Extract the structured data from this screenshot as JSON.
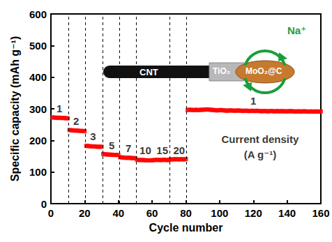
{
  "chart_data": {
    "type": "scatter",
    "xlabel": "Cycle number",
    "ylabel": "Specific capacity (mAh g⁻¹)",
    "xlim": [
      0,
      160
    ],
    "xticks": [
      0,
      20,
      40,
      60,
      80,
      100,
      120,
      140,
      160
    ],
    "ylim": [
      0,
      600
    ],
    "yticks": [
      0,
      100,
      200,
      300,
      400,
      500,
      600
    ],
    "grid": false,
    "series": [
      {
        "color": "#ff0000",
        "marker": "square",
        "x": [
          1,
          2,
          3,
          4,
          5,
          6,
          7,
          8,
          9,
          10,
          11,
          12,
          13,
          14,
          15,
          16,
          17,
          18,
          19,
          20,
          21,
          22,
          23,
          24,
          25,
          26,
          27,
          28,
          29,
          30,
          31,
          32,
          33,
          34,
          35,
          36,
          37,
          38,
          39,
          40,
          41,
          42,
          43,
          44,
          45,
          46,
          47,
          48,
          49,
          50,
          51,
          52,
          53,
          54,
          55,
          56,
          57,
          58,
          59,
          60,
          61,
          62,
          63,
          64,
          65,
          66,
          67,
          68,
          69,
          70,
          71,
          72,
          73,
          74,
          75,
          76,
          77,
          78,
          79,
          80,
          81,
          82,
          83,
          84,
          85,
          86,
          87,
          88,
          89,
          90,
          91,
          92,
          93,
          94,
          95,
          96,
          97,
          98,
          99,
          100,
          101,
          102,
          103,
          104,
          105,
          106,
          107,
          108,
          109,
          110,
          111,
          112,
          113,
          114,
          115,
          116,
          117,
          118,
          119,
          120,
          121,
          122,
          123,
          124,
          125,
          126,
          127,
          128,
          129,
          130,
          131,
          132,
          133,
          134,
          135,
          136,
          137,
          138,
          139,
          140,
          141,
          142,
          143,
          144,
          145,
          146,
          147,
          148,
          149,
          150,
          151,
          152,
          153,
          154,
          155,
          156,
          157,
          158,
          159,
          160
        ],
        "values": [
          273,
          272,
          272,
          271,
          272,
          271,
          271,
          271,
          270,
          270,
          233,
          232,
          232,
          231,
          231,
          231,
          230,
          230,
          230,
          229,
          183,
          182,
          182,
          181,
          181,
          181,
          180,
          180,
          180,
          180,
          157,
          156,
          156,
          155,
          155,
          155,
          154,
          154,
          154,
          154,
          147,
          146,
          146,
          145,
          145,
          145,
          145,
          144,
          144,
          144,
          139,
          138,
          138,
          138,
          138,
          137,
          137,
          137,
          137,
          137,
          138,
          138,
          139,
          138,
          138,
          138,
          139,
          138,
          138,
          138,
          140,
          140,
          140,
          141,
          140,
          140,
          141,
          140,
          140,
          141,
          296,
          297,
          297,
          296,
          296,
          297,
          296,
          296,
          297,
          297,
          297,
          298,
          298,
          297,
          297,
          296,
          296,
          295,
          295,
          296,
          296,
          295,
          295,
          294,
          294,
          295,
          295,
          294,
          294,
          294,
          295,
          294,
          294,
          293,
          294,
          294,
          293,
          293,
          294,
          293,
          293,
          294,
          293,
          293,
          292,
          293,
          293,
          292,
          292,
          293,
          293,
          292,
          292,
          293,
          292,
          292,
          293,
          292,
          292,
          292,
          292,
          293,
          292,
          292,
          291,
          292,
          292,
          291,
          292,
          292,
          292,
          291,
          291,
          292,
          291,
          291,
          292,
          291,
          291,
          292
        ]
      }
    ],
    "dividers": [
      10.5,
      20.5,
      30.5,
      40.5,
      50.5,
      70.5,
      80.5
    ],
    "annotations": [
      {
        "text": "1",
        "x": 5,
        "y": 302
      },
      {
        "text": "2",
        "x": 15,
        "y": 262
      },
      {
        "text": "3",
        "x": 25,
        "y": 212
      },
      {
        "text": "5",
        "x": 36,
        "y": 185
      },
      {
        "text": "7",
        "x": 46,
        "y": 175
      },
      {
        "text": "10",
        "x": 56,
        "y": 168
      },
      {
        "text": "15",
        "x": 66,
        "y": 168
      },
      {
        "text": "20",
        "x": 76,
        "y": 168
      },
      {
        "text": "1",
        "x": 120,
        "y": 325
      },
      {
        "text": "Current density",
        "x": 124,
        "y": 205
      },
      {
        "text": "(A g⁻¹)",
        "x": 124,
        "y": 155
      }
    ],
    "inset": {
      "labels": [
        "CNT",
        "TiO₂",
        "MoO₂@C",
        "Na⁺"
      ]
    }
  }
}
